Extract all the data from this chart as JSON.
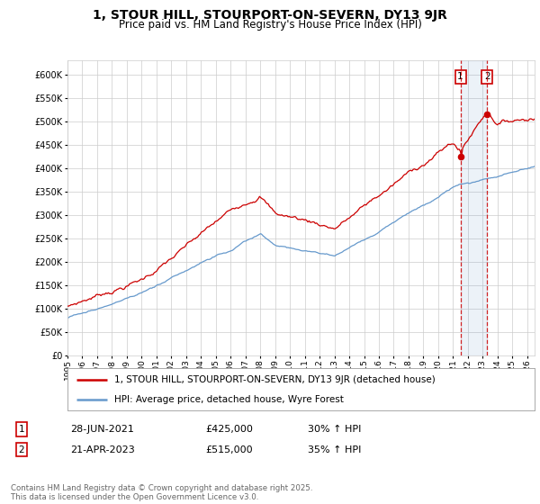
{
  "title": "1, STOUR HILL, STOURPORT-ON-SEVERN, DY13 9JR",
  "subtitle": "Price paid vs. HM Land Registry's House Price Index (HPI)",
  "legend_line1": "1, STOUR HILL, STOURPORT-ON-SEVERN, DY13 9JR (detached house)",
  "legend_line2": "HPI: Average price, detached house, Wyre Forest",
  "annotation1_date": "28-JUN-2021",
  "annotation1_price": "£425,000",
  "annotation1_hpi": "30% ↑ HPI",
  "annotation2_date": "21-APR-2023",
  "annotation2_price": "£515,000",
  "annotation2_hpi": "35% ↑ HPI",
  "footer": "Contains HM Land Registry data © Crown copyright and database right 2025.\nThis data is licensed under the Open Government Licence v3.0.",
  "property_color": "#cc0000",
  "hpi_color": "#6699cc",
  "sale1_x": 2021.5,
  "sale1_y": 425000,
  "sale2_x": 2023.3,
  "sale2_y": 515000,
  "ylim": [
    0,
    630000
  ],
  "xlim": [
    1995,
    2026.5
  ],
  "yticks": [
    0,
    50000,
    100000,
    150000,
    200000,
    250000,
    300000,
    350000,
    400000,
    450000,
    500000,
    550000,
    600000
  ],
  "background_color": "#ffffff",
  "grid_color": "#cccccc"
}
